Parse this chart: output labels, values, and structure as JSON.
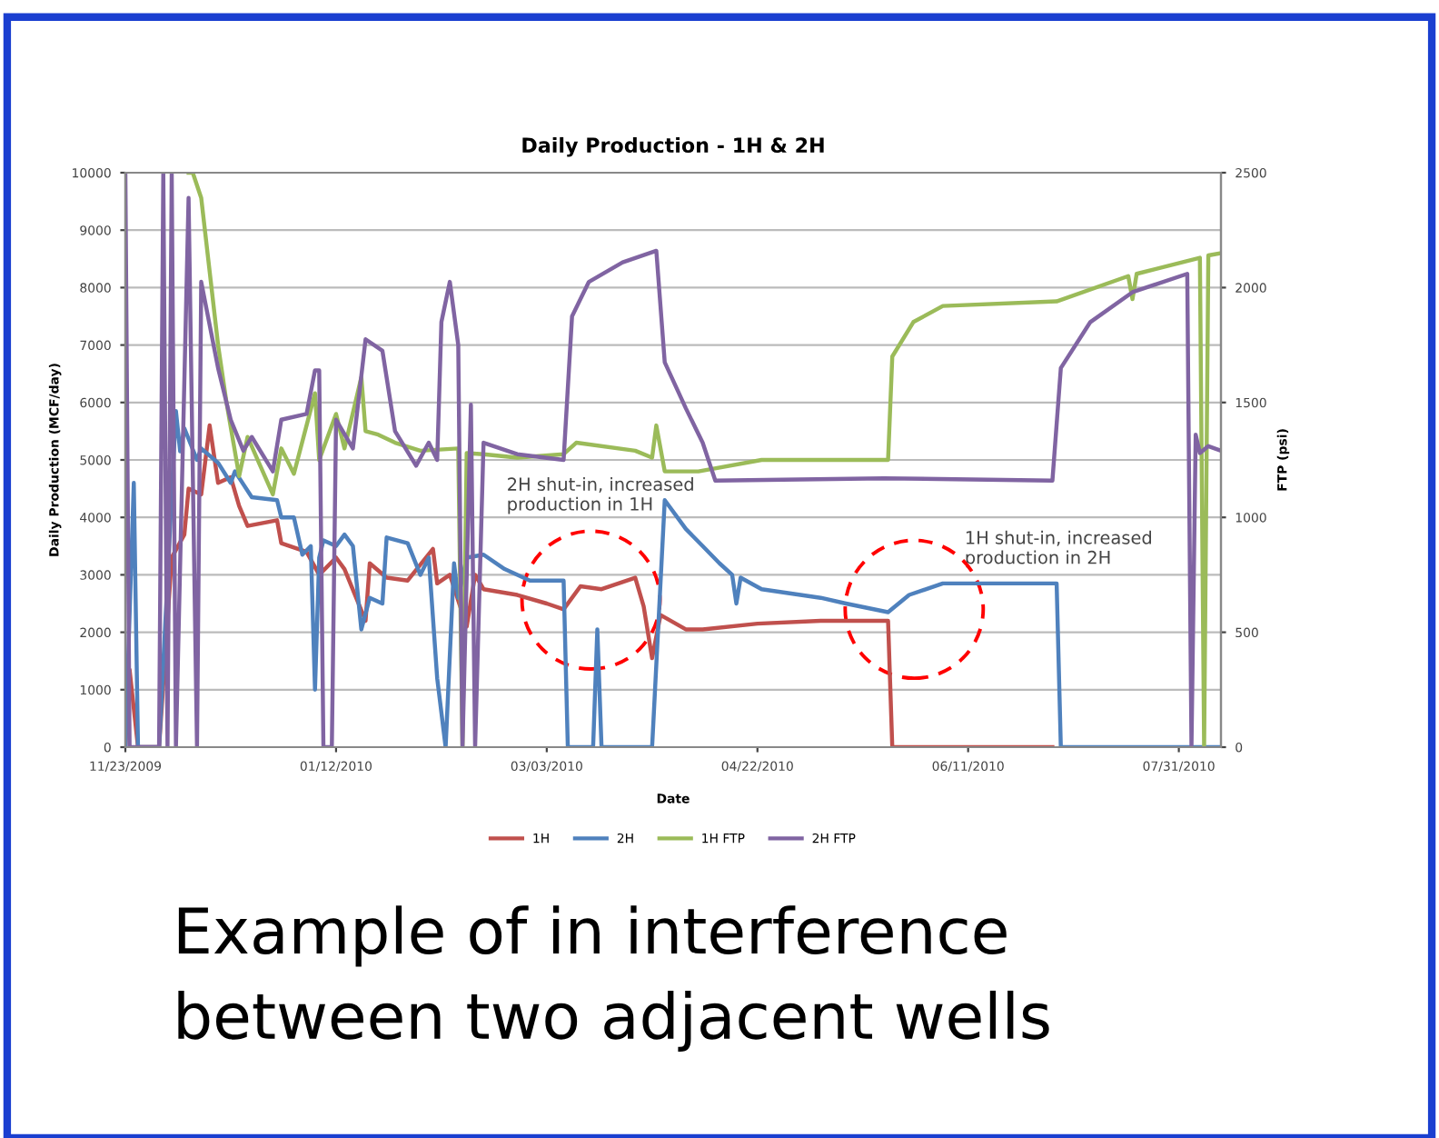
{
  "chart_data": {
    "type": "line",
    "title": "Daily Production - 1H & 2H",
    "xlabel": "Date",
    "ylabel": "Daily Production (MCF/day)",
    "y2label": "FTP (psi)",
    "xlim": [
      "2009-11-23",
      "2010-08-10"
    ],
    "xticks": [
      {
        "value": "2009-11-23",
        "label": "11/23/2009"
      },
      {
        "value": "2010-01-12",
        "label": "01/12/2010"
      },
      {
        "value": "2010-03-03",
        "label": "03/03/2010"
      },
      {
        "value": "2010-04-22",
        "label": "04/22/2010"
      },
      {
        "value": "2010-06-11",
        "label": "06/11/2010"
      },
      {
        "value": "2010-07-31",
        "label": "07/31/2010"
      }
    ],
    "ylim": [
      0,
      10000
    ],
    "yticks": [
      0,
      1000,
      2000,
      3000,
      4000,
      5000,
      6000,
      7000,
      8000,
      9000,
      10000
    ],
    "y2lim": [
      0,
      2500
    ],
    "y2ticks": [
      0,
      500,
      1000,
      1500,
      2000,
      2500
    ],
    "grid": "y",
    "legend": "bottom",
    "marker": "none",
    "line_style": "solid",
    "series": [
      {
        "name": "1H",
        "color": "#c0504d",
        "x": [
          "2009-11-23",
          "2009-11-24",
          "2009-11-26",
          "2009-12-01",
          "2009-12-04",
          "2009-12-07",
          "2009-12-08",
          "2009-12-11",
          "2009-12-13",
          "2009-12-15",
          "2009-12-18",
          "2009-12-20",
          "2009-12-22",
          "2009-12-29",
          "2009-12-30",
          "2010-01-05",
          "2010-01-08",
          "2010-01-12",
          "2010-01-14",
          "2010-01-19",
          "2010-01-20",
          "2010-01-24",
          "2010-01-29",
          "2010-02-04",
          "2010-02-05",
          "2010-02-08",
          "2010-02-12",
          "2010-02-14",
          "2010-02-16",
          "2010-02-24",
          "2010-03-03",
          "2010-03-07",
          "2010-03-11",
          "2010-03-16",
          "2010-03-24",
          "2010-03-26",
          "2010-03-28",
          "2010-03-30",
          "2010-04-05",
          "2010-04-09",
          "2010-04-22",
          "2010-05-07",
          "2010-05-23",
          "2010-05-24",
          "2010-07-01"
        ],
        "values": [
          0,
          1350,
          0,
          0,
          3300,
          3700,
          4500,
          4400,
          5600,
          4600,
          4700,
          4200,
          3850,
          3950,
          3550,
          3400,
          3000,
          3300,
          3100,
          2200,
          3200,
          2950,
          2900,
          3450,
          2850,
          3000,
          2100,
          3000,
          2750,
          2650,
          2500,
          2400,
          2800,
          2750,
          2950,
          2450,
          1550,
          2300,
          2050,
          2050,
          2150,
          2200,
          2200,
          0,
          0
        ]
      },
      {
        "name": "2H",
        "color": "#4f81bd",
        "x": [
          "2009-11-23",
          "2009-11-25",
          "2009-11-26",
          "2009-12-01",
          "2009-12-05",
          "2009-12-06",
          "2009-12-07",
          "2009-12-10",
          "2009-12-11",
          "2009-12-15",
          "2009-12-18",
          "2009-12-19",
          "2009-12-23",
          "2009-12-29",
          "2009-12-30",
          "2010-01-02",
          "2010-01-04",
          "2010-01-06",
          "2010-01-07",
          "2010-01-08",
          "2010-01-09",
          "2010-01-12",
          "2010-01-14",
          "2010-01-16",
          "2010-01-18",
          "2010-01-20",
          "2010-01-23",
          "2010-01-24",
          "2010-01-29",
          "2010-02-01",
          "2010-02-03",
          "2010-02-05",
          "2010-02-07",
          "2010-02-09",
          "2010-02-10",
          "2010-02-12",
          "2010-02-16",
          "2010-02-21",
          "2010-02-27",
          "2010-03-07",
          "2010-03-08",
          "2010-03-14",
          "2010-03-15",
          "2010-03-16",
          "2010-03-28",
          "2010-03-31",
          "2010-04-05",
          "2010-04-09",
          "2010-04-13",
          "2010-04-16",
          "2010-04-17",
          "2010-04-18",
          "2010-04-23",
          "2010-05-07",
          "2010-05-13",
          "2010-05-23",
          "2010-05-28",
          "2010-06-05",
          "2010-07-02",
          "2010-07-03",
          "2010-08-10"
        ],
        "values": [
          0,
          4600,
          0,
          0,
          5850,
          5150,
          5550,
          5000,
          5200,
          4950,
          4600,
          4800,
          4350,
          4300,
          4000,
          4000,
          3350,
          3500,
          1000,
          3300,
          3600,
          3500,
          3700,
          3500,
          2050,
          2600,
          2500,
          3650,
          3550,
          3000,
          3300,
          1200,
          0,
          3200,
          2600,
          3300,
          3350,
          3100,
          2900,
          2900,
          0,
          0,
          2050,
          0,
          0,
          4300,
          3800,
          3500,
          3200,
          3000,
          2500,
          2950,
          2750,
          2600,
          2500,
          2350,
          2650,
          2850,
          2850,
          0,
          0
        ]
      },
      {
        "name": "1H FTP",
        "color": "#9bbb59",
        "axis": "y2",
        "x": [
          "2009-12-08",
          "2009-12-09",
          "2009-12-11",
          "2009-12-15",
          "2009-12-17",
          "2009-12-20",
          "2009-12-22",
          "2009-12-28",
          "2009-12-30",
          "2010-01-02",
          "2010-01-07",
          "2010-01-08",
          "2010-01-12",
          "2010-01-14",
          "2010-01-18",
          "2010-01-19",
          "2010-01-22",
          "2010-01-26",
          "2010-02-01",
          "2010-02-10",
          "2010-02-11",
          "2010-02-12",
          "2010-02-16",
          "2010-02-24",
          "2010-03-07",
          "2010-03-10",
          "2010-03-24",
          "2010-03-28",
          "2010-03-29",
          "2010-03-31",
          "2010-04-08",
          "2010-04-23",
          "2010-05-23",
          "2010-05-24",
          "2010-05-29",
          "2010-06-05",
          "2010-07-02",
          "2010-07-19",
          "2010-07-20",
          "2010-07-21",
          "2010-08-05",
          "2010-08-06",
          "2010-08-07",
          "2010-08-10"
        ],
        "values": [
          2500,
          2500,
          2390,
          1750,
          1500,
          1180,
          1350,
          1100,
          1300,
          1190,
          1540,
          1250,
          1450,
          1300,
          1610,
          1375,
          1360,
          1325,
          1290,
          1300,
          0,
          1280,
          1275,
          1260,
          1275,
          1325,
          1290,
          1260,
          1400,
          1200,
          1200,
          1250,
          1250,
          1700,
          1850,
          1920,
          1940,
          2050,
          1950,
          2060,
          2130,
          0,
          2140,
          2150
        ]
      },
      {
        "name": "2H FTP",
        "color": "#8064a2",
        "axis": "y2",
        "x": [
          "2009-11-23",
          "2009-11-24",
          "2009-12-01",
          "2009-12-02",
          "2009-12-03",
          "2009-12-04",
          "2009-12-05",
          "2009-12-08",
          "2009-12-10",
          "2009-12-11",
          "2009-12-15",
          "2009-12-18",
          "2009-12-21",
          "2009-12-23",
          "2009-12-28",
          "2009-12-30",
          "2010-01-05",
          "2010-01-07",
          "2010-01-08",
          "2010-01-09",
          "2010-01-11",
          "2010-01-12",
          "2010-01-16",
          "2010-01-19",
          "2010-01-23",
          "2010-01-26",
          "2010-01-31",
          "2010-02-03",
          "2010-02-05",
          "2010-02-06",
          "2010-02-08",
          "2010-02-10",
          "2010-02-11",
          "2010-02-13",
          "2010-02-14",
          "2010-02-16",
          "2010-02-24",
          "2010-03-07",
          "2010-03-09",
          "2010-03-13",
          "2010-03-21",
          "2010-03-29",
          "2010-03-31",
          "2010-04-05",
          "2010-04-09",
          "2010-04-12",
          "2010-05-22",
          "2010-07-01",
          "2010-07-03",
          "2010-07-10",
          "2010-07-20",
          "2010-08-02",
          "2010-08-03",
          "2010-08-04",
          "2010-08-05",
          "2010-08-07",
          "2010-08-10"
        ],
        "values": [
          2500,
          0,
          0,
          2500,
          0,
          2500,
          0,
          2390,
          0,
          2025,
          1650,
          1425,
          1290,
          1350,
          1200,
          1425,
          1450,
          1640,
          1640,
          0,
          0,
          1425,
          1300,
          1775,
          1725,
          1375,
          1225,
          1325,
          1250,
          1850,
          2025,
          1750,
          0,
          1490,
          0,
          1325,
          1275,
          1250,
          1875,
          2025,
          2110,
          2160,
          1675,
          1475,
          1325,
          1160,
          1170,
          1160,
          1650,
          1850,
          1980,
          2060,
          0,
          1360,
          1280,
          1310,
          1290
        ]
      }
    ],
    "annotations": [
      "2H shut-in, increased\nproduction in 1H",
      "1H shut-in, increased\nproduction in 2H",
      "Example of in interference\nbetween two adjacent wells"
    ]
  }
}
